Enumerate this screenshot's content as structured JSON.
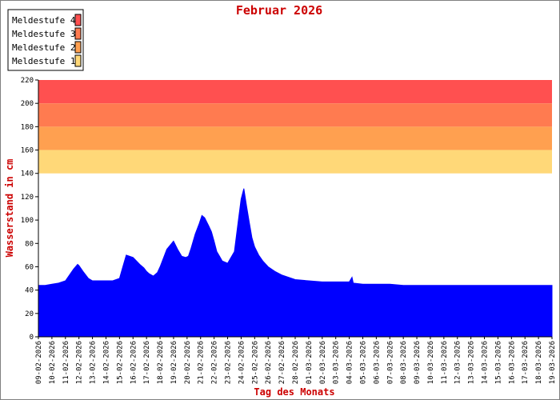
{
  "chart_data": {
    "type": "area",
    "title": "Februar 2026",
    "xlabel": "Tag des Monats",
    "ylabel": "Wasserstand in cm",
    "ylim": [
      0,
      220
    ],
    "yticks": [
      0,
      20,
      40,
      60,
      80,
      100,
      120,
      140,
      160,
      180,
      200,
      220
    ],
    "x_tick_labels": [
      "09-02-2026",
      "10-02-2026",
      "11-02-2026",
      "12-02-2026",
      "13-02-2026",
      "14-02-2026",
      "15-02-2026",
      "16-02-2026",
      "17-02-2026",
      "18-02-2026",
      "19-02-2026",
      "20-02-2026",
      "21-02-2026",
      "22-02-2026",
      "23-02-2026",
      "24-02-2026",
      "25-02-2026",
      "26-02-2026",
      "27-02-2026",
      "28-02-2026",
      "01-03-2026",
      "02-03-2026",
      "03-03-2026",
      "04-03-2026",
      "05-03-2026",
      "06-03-2026",
      "07-03-2026",
      "08-03-2026",
      "09-03-2026",
      "10-03-2026",
      "11-03-2026",
      "12-03-2026",
      "13-03-2026",
      "14-03-2026",
      "15-03-2026",
      "16-03-2026",
      "17-03-2026",
      "18-03-2026",
      "19-03-2026"
    ],
    "grid": false,
    "legend_placement": "top-left",
    "warning_levels": [
      {
        "name": "Meldestufe 4",
        "from": 200,
        "to": 220,
        "color": "#ff5050"
      },
      {
        "name": "Meldestufe 3",
        "from": 180,
        "to": 200,
        "color": "#ff7b50"
      },
      {
        "name": "Meldestufe 2",
        "from": 160,
        "to": 180,
        "color": "#ffa050"
      },
      {
        "name": "Meldestufe 1",
        "from": 140,
        "to": 160,
        "color": "#ffd878"
      }
    ],
    "series": [
      {
        "color": "#0000ff",
        "x": [
          0.5,
          1.0,
          1.5,
          2.0,
          2.3,
          2.6,
          2.9,
          3.0,
          3.3,
          3.7,
          4.0,
          4.3,
          4.6,
          5.0,
          5.5,
          6.0,
          6.2,
          6.5,
          7.0,
          7.5,
          7.8,
          8.0,
          8.2,
          8.5,
          8.8,
          9.0,
          9.5,
          10.0,
          10.3,
          10.6,
          10.9,
          11.1,
          11.3,
          11.6,
          11.9,
          12.1,
          12.3,
          12.6,
          12.8,
          13.0,
          13.2,
          13.4,
          13.5,
          13.6,
          14.0,
          14.5,
          14.8,
          15.0,
          15.2,
          15.4,
          15.6,
          15.8,
          16.0,
          16.3,
          16.6,
          17.0,
          17.5,
          18.0,
          19.0,
          20.0,
          21.0,
          22.0,
          23.0,
          23.2,
          23.3,
          24.0,
          25.0,
          26.0,
          27.0,
          28.0,
          29.0,
          30.0,
          31.0,
          32.0,
          33.0,
          34.0,
          35.0,
          36.0,
          37.0,
          38.0
        ],
        "y": [
          44,
          45,
          46,
          48,
          53,
          58,
          62,
          61,
          56,
          50,
          48,
          48,
          48,
          48,
          48,
          50,
          58,
          70,
          68,
          62,
          59,
          56,
          54,
          52,
          55,
          60,
          75,
          82,
          75,
          69,
          68,
          69,
          76,
          88,
          97,
          104,
          102,
          95,
          90,
          82,
          73,
          69,
          67,
          65,
          63,
          73,
          100,
          118,
          127,
          112,
          98,
          85,
          77,
          70,
          65,
          60,
          56,
          53,
          49,
          48,
          47,
          47,
          47,
          51,
          46,
          45,
          45,
          45,
          44,
          44,
          44,
          44,
          44,
          44,
          44,
          44,
          44,
          44,
          44,
          44
        ]
      }
    ]
  }
}
